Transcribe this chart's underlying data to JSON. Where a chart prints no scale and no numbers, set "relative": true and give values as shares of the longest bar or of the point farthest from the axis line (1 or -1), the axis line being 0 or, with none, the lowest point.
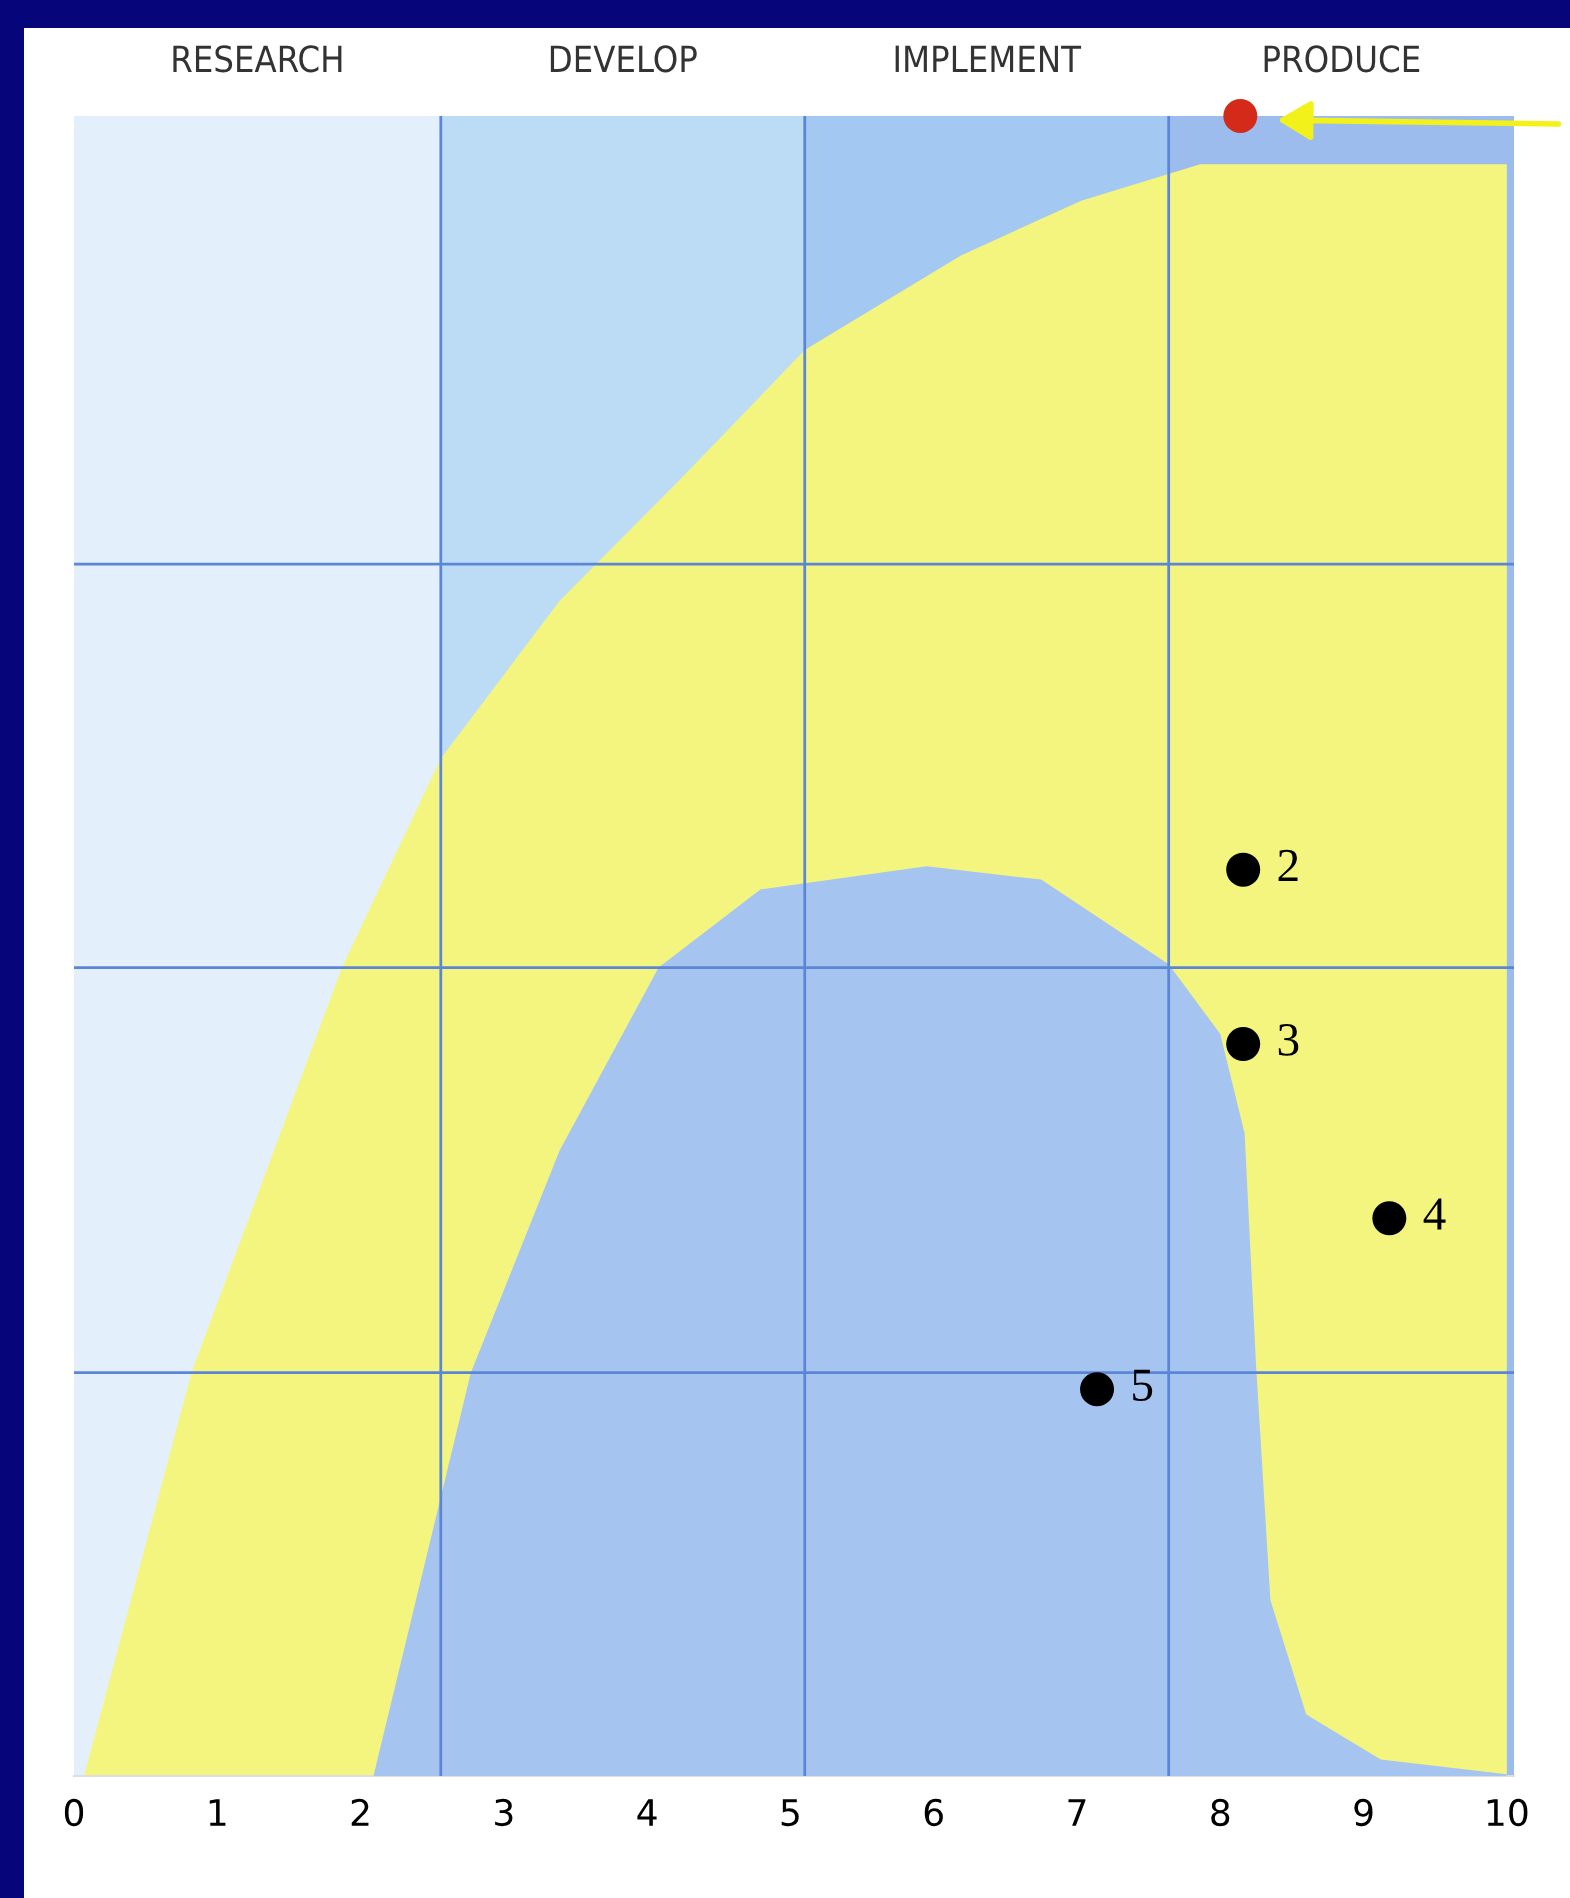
{
  "chart_data": {
    "type": "area",
    "relative": true,
    "xlim": [
      0,
      10.05
    ],
    "xticks": [
      0,
      1,
      2,
      3,
      4,
      5,
      6,
      7,
      8,
      9,
      10
    ],
    "series": [
      {
        "color": "#f4f57f",
        "x": [
          0.07,
          0.82,
          1.87,
          2.56,
          3.39,
          4.23,
          5.1,
          6.19,
          7.03,
          7.86,
          10
        ],
        "values": [
          0,
          0.243,
          0.487,
          0.613,
          0.708,
          0.781,
          0.859,
          0.916,
          0.949,
          0.971,
          0.971
        ]
      },
      {
        "color": "#a6c4f0",
        "x": [
          2.09,
          2.77,
          3.39,
          4.08,
          4.79,
          5.95,
          6.75,
          7.64,
          8.0,
          8.17,
          8.25,
          8.35,
          8.6,
          9.12,
          10
        ],
        "values": [
          0,
          0.243,
          0.377,
          0.487,
          0.534,
          0.548,
          0.54,
          0.489,
          0.447,
          0.387,
          0.247,
          0.106,
          0.037,
          0.01,
          0.001
        ]
      },
      {
        "type": "scatter",
        "color": "#000000",
        "marker": "circle",
        "x": [
          8.16,
          8.16,
          9.18,
          7.14
        ],
        "values": [
          0.546,
          0.441,
          0.336,
          0.233
        ]
      },
      {
        "type": "scatter",
        "color": "#d42a1a",
        "marker": "circle",
        "x": [
          8.14
        ],
        "values": [
          1.0
        ]
      }
    ],
    "bands": [
      {
        "axis": "x",
        "from": 0,
        "to": 2.56,
        "label": "RESEARCH",
        "color": "#e3f0fb"
      },
      {
        "axis": "x",
        "from": 2.56,
        "to": 5.1,
        "label": "DEVELOP",
        "color": "#bcdcf6"
      },
      {
        "axis": "x",
        "from": 5.1,
        "to": 7.64,
        "label": "IMPLEMENT",
        "color": "#a3c8f2"
      },
      {
        "axis": "x",
        "from": 7.64,
        "to": 10.05,
        "label": "PRODUCE",
        "color": "#9dbcee"
      }
    ],
    "ref_lines": [
      {
        "axis": "x",
        "value": 2.56,
        "color": "#5b86d6"
      },
      {
        "axis": "x",
        "value": 5.1,
        "color": "#5b86d6"
      },
      {
        "axis": "x",
        "value": 7.64,
        "color": "#5b86d6"
      },
      {
        "axis": "y",
        "value": 0.243,
        "color": "#5b86d6"
      },
      {
        "axis": "y",
        "value": 0.487,
        "color": "#5b86d6"
      },
      {
        "axis": "y",
        "value": 0.73,
        "color": "#5b86d6"
      }
    ],
    "annotations": [
      {
        "text": "2",
        "x": 8.16,
        "y": 0.546
      },
      {
        "text": "3",
        "x": 8.16,
        "y": 0.441
      },
      {
        "text": "4",
        "x": 9.18,
        "y": 0.336
      },
      {
        "text": "5",
        "x": 7.14,
        "y": 0.233
      }
    ],
    "grid": false,
    "legend": false
  }
}
